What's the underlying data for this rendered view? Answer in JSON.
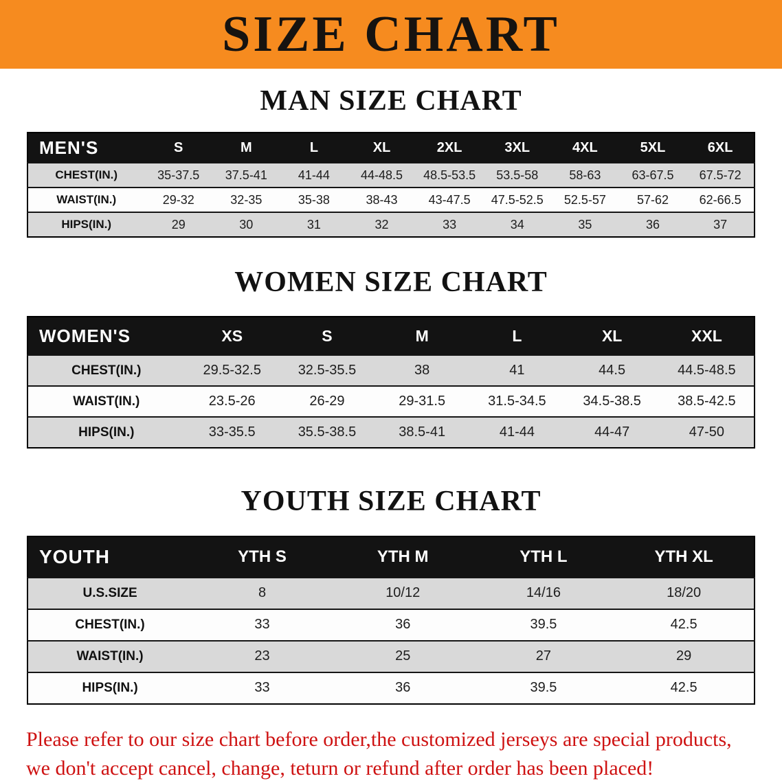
{
  "banner": {
    "title": "SIZE CHART",
    "bg_color": "#f68b1f",
    "text_color": "#161310"
  },
  "sections": [
    {
      "heading": "MAN SIZE CHART",
      "table": {
        "corner": "MEN'S",
        "columns": [
          "S",
          "M",
          "L",
          "XL",
          "2XL",
          "3XL",
          "4XL",
          "5XL",
          "6XL"
        ],
        "rows": [
          {
            "label": "CHEST(IN.)",
            "values": [
              "35-37.5",
              "37.5-41",
              "41-44",
              "44-48.5",
              "48.5-53.5",
              "53.5-58",
              "58-63",
              "63-67.5",
              "67.5-72"
            ]
          },
          {
            "label": "WAIST(IN.)",
            "values": [
              "29-32",
              "32-35",
              "35-38",
              "38-43",
              "43-47.5",
              "47.5-52.5",
              "52.5-57",
              "57-62",
              "62-66.5"
            ]
          },
          {
            "label": "HIPS(IN.)",
            "values": [
              "29",
              "30",
              "31",
              "32",
              "33",
              "34",
              "35",
              "36",
              "37"
            ]
          }
        ]
      }
    },
    {
      "heading": "WOMEN SIZE CHART",
      "table": {
        "corner": "WOMEN'S",
        "columns": [
          "XS",
          "S",
          "M",
          "L",
          "XL",
          "XXL"
        ],
        "rows": [
          {
            "label": "CHEST(IN.)",
            "values": [
              "29.5-32.5",
              "32.5-35.5",
              "38",
              "41",
              "44.5",
              "44.5-48.5"
            ]
          },
          {
            "label": "WAIST(IN.)",
            "values": [
              "23.5-26",
              "26-29",
              "29-31.5",
              "31.5-34.5",
              "34.5-38.5",
              "38.5-42.5"
            ]
          },
          {
            "label": "HIPS(IN.)",
            "values": [
              "33-35.5",
              "35.5-38.5",
              "38.5-41",
              "41-44",
              "44-47",
              "47-50"
            ]
          }
        ]
      }
    },
    {
      "heading": "YOUTH SIZE CHART",
      "table": {
        "corner": "YOUTH",
        "columns": [
          "YTH S",
          "YTH M",
          "YTH L",
          "YTH XL"
        ],
        "rows": [
          {
            "label": "U.S.SIZE",
            "values": [
              "8",
              "10/12",
              "14/16",
              "18/20"
            ]
          },
          {
            "label": "CHEST(IN.)",
            "values": [
              "33",
              "36",
              "39.5",
              "42.5"
            ]
          },
          {
            "label": "WAIST(IN.)",
            "values": [
              "23",
              "25",
              "27",
              "29"
            ]
          },
          {
            "label": "HIPS(IN.)",
            "values": [
              "33",
              "36",
              "39.5",
              "42.5"
            ]
          }
        ]
      }
    }
  ],
  "notice": {
    "line1": "Please refer to our size chart before order,the customized jerseys are special products,",
    "line2": "we don't accept cancel, change, teturn or refund after order has been placed!",
    "color": "#ce1212"
  },
  "colors": {
    "table_header_bg": "#131313",
    "row_stripe": "#d9d9d9"
  }
}
